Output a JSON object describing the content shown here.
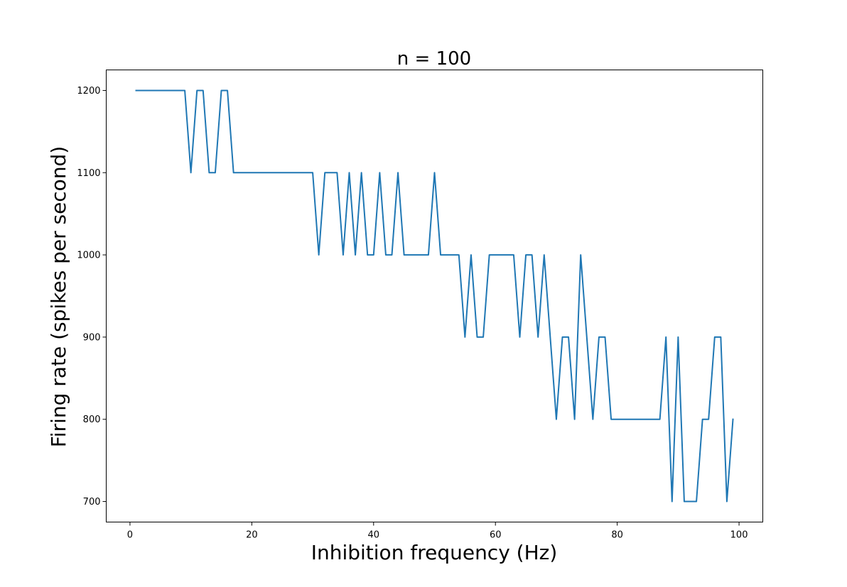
{
  "chart_data": {
    "type": "line",
    "title": "n = 100",
    "xlabel": "Inhibition frequency (Hz)",
    "ylabel": "Firing rate (spikes per second)",
    "xlim": [
      -3.9,
      103.9
    ],
    "ylim": [
      675,
      1225
    ],
    "xticks": [
      0,
      20,
      40,
      60,
      80,
      100
    ],
    "yticks": [
      700,
      800,
      900,
      1000,
      1100,
      1200
    ],
    "grid": false,
    "color": "#1f77b4",
    "series": [
      {
        "x": [
          1,
          2,
          3,
          4,
          5,
          6,
          7,
          8,
          9,
          10,
          11,
          12,
          13,
          14,
          15,
          16,
          17,
          18,
          19,
          20,
          21,
          22,
          23,
          24,
          25,
          26,
          27,
          28,
          29,
          30,
          31,
          32,
          33,
          34,
          35,
          36,
          37,
          38,
          39,
          40,
          41,
          42,
          43,
          44,
          45,
          46,
          47,
          48,
          49,
          50,
          51,
          52,
          53,
          54,
          55,
          56,
          57,
          58,
          59,
          60,
          61,
          62,
          63,
          64,
          65,
          66,
          67,
          68,
          69,
          70,
          71,
          72,
          73,
          74,
          75,
          76,
          77,
          78,
          79,
          80,
          81,
          82,
          83,
          84,
          85,
          86,
          87,
          88,
          89,
          90,
          91,
          92,
          93,
          94,
          95,
          96,
          97,
          98,
          99
        ],
        "y": [
          1200,
          1200,
          1200,
          1200,
          1200,
          1200,
          1200,
          1200,
          1200,
          1100,
          1200,
          1200,
          1100,
          1100,
          1200,
          1200,
          1100,
          1100,
          1100,
          1100,
          1100,
          1100,
          1100,
          1100,
          1100,
          1100,
          1100,
          1100,
          1100,
          1100,
          1000,
          1100,
          1100,
          1100,
          1000,
          1100,
          1000,
          1100,
          1000,
          1000,
          1100,
          1000,
          1000,
          1100,
          1000,
          1000,
          1000,
          1000,
          1000,
          1100,
          1000,
          1000,
          1000,
          1000,
          900,
          1000,
          900,
          900,
          1000,
          1000,
          1000,
          1000,
          1000,
          900,
          1000,
          1000,
          900,
          1000,
          900,
          800,
          900,
          900,
          800,
          1000,
          900,
          800,
          900,
          900,
          800,
          800,
          800,
          800,
          800,
          800,
          800,
          800,
          800,
          900,
          700,
          900,
          700,
          700,
          700,
          800,
          800,
          900,
          900,
          700,
          800
        ]
      }
    ]
  }
}
